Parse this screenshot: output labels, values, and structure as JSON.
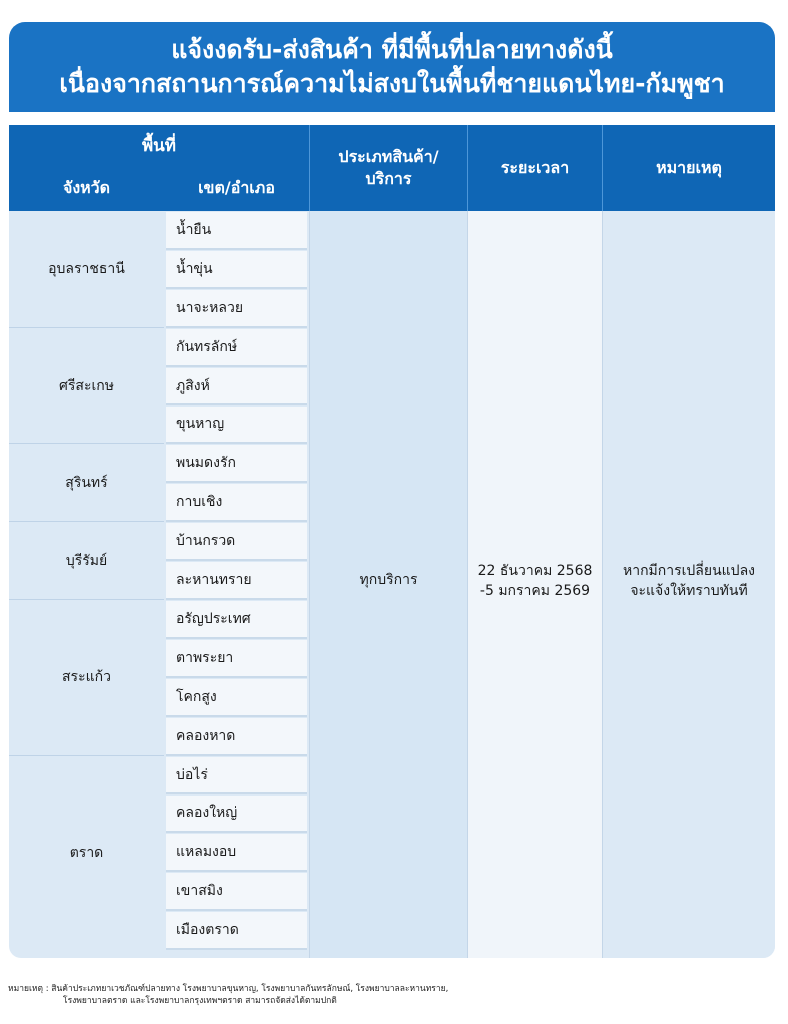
{
  "title": {
    "line1": "แจ้งงดรับ-ส่งสินค้า ที่มีพื้นที่ปลายทางดังนี้",
    "line2": "เนื่องจากสถานการณ์ความไม่สงบในพื้นที่ชายแดนไทย-กัมพูชา"
  },
  "headers": {
    "area": "พื้นที่",
    "province": "จังหวัด",
    "district": "เขต/อำเภอ",
    "type": "ประเภทสินค้า/ บริการ",
    "period": "ระยะเวลา",
    "remark": "หมายเหตุ"
  },
  "provinces": [
    {
      "name": "อุบลราชธานี",
      "districts": [
        "น้ำยืน",
        "น้ำขุ่น",
        "นาจะหลวย"
      ]
    },
    {
      "name": "ศรีสะเกษ",
      "districts": [
        "กันทรลักษ์",
        "ภูสิงห์",
        "ขุนหาญ"
      ]
    },
    {
      "name": "สุรินทร์",
      "districts": [
        "พนมดงรัก",
        "กาบเชิง"
      ]
    },
    {
      "name": "บุรีรัมย์",
      "districts": [
        "บ้านกรวด",
        "ละหานทราย"
      ]
    },
    {
      "name": "สระแก้ว",
      "districts": [
        "อรัญประเทศ",
        "ตาพระยา",
        "โคกสูง",
        "คลองหาด"
      ]
    },
    {
      "name": "ตราด",
      "districts": [
        "บ่อไร่",
        "คลองใหญ่",
        "แหลมงอบ",
        "เขาสมิง",
        "เมืองตราด"
      ]
    }
  ],
  "service_type": "ทุกบริการ",
  "period": {
    "line1": "22 ธันวาคม 2568",
    "line2": "-5 มกราคม 2569"
  },
  "remark": {
    "line1": "หากมีการเปลี่ยนแปลง",
    "line2": "จะแจ้งให้ทราบทันที"
  },
  "footnote": {
    "line1": "หมายเหตุ : สินค้าประเภทยาเวชภัณฑ์ปลายทาง โรงพยาบาลขุนหาญ, โรงพยาบาลกันทรลักษณ์, โรงพยาบาลละหานทราย,",
    "line2": "โรงพยาบาลตราด และโรงพยาบาลกรุงเทพฯตราด สามารถจัดส่งได้ตามปกติ"
  }
}
